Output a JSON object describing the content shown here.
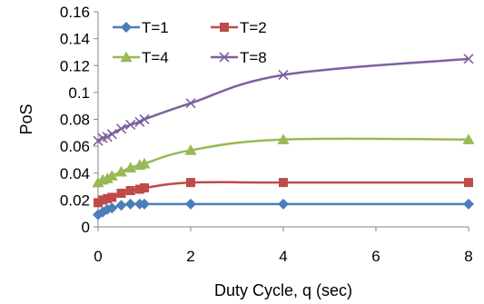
{
  "chart_data": {
    "type": "line",
    "xlabel": "Duty Cycle, q (sec)",
    "ylabel": "PoS",
    "xlim": [
      0,
      8
    ],
    "ylim": [
      0,
      0.16
    ],
    "xticks": [
      "0",
      "2",
      "4",
      "6",
      "8"
    ],
    "yticks": [
      "0",
      "0.02",
      "0.04",
      "0.06",
      "0.08",
      "0.1",
      "0.12",
      "0.14",
      "0.16"
    ],
    "grid": false,
    "legend_position": "top-left",
    "series": [
      {
        "name": "T=1",
        "color": "#4a7ebb",
        "marker": "diamond",
        "x": [
          0,
          0.1,
          0.2,
          0.3,
          0.5,
          0.7,
          0.9,
          1,
          2,
          4,
          8
        ],
        "y": [
          0.009,
          0.011,
          0.013,
          0.014,
          0.016,
          0.017,
          0.017,
          0.017,
          0.017,
          0.017,
          0.017
        ]
      },
      {
        "name": "T=2",
        "color": "#be4b48",
        "marker": "square",
        "x": [
          0,
          0.1,
          0.2,
          0.3,
          0.5,
          0.7,
          0.9,
          1,
          2,
          4,
          8
        ],
        "y": [
          0.018,
          0.02,
          0.021,
          0.022,
          0.025,
          0.027,
          0.028,
          0.029,
          0.033,
          0.033,
          0.033
        ]
      },
      {
        "name": "T=4",
        "color": "#98b954",
        "marker": "triangle",
        "x": [
          0,
          0.1,
          0.2,
          0.3,
          0.5,
          0.7,
          0.9,
          1,
          2,
          4,
          8
        ],
        "y": [
          0.033,
          0.035,
          0.036,
          0.038,
          0.041,
          0.044,
          0.046,
          0.047,
          0.057,
          0.065,
          0.065
        ]
      },
      {
        "name": "T=8",
        "color": "#7d60a0",
        "marker": "x",
        "x": [
          0,
          0.1,
          0.2,
          0.3,
          0.5,
          0.7,
          0.9,
          1,
          2,
          4,
          8
        ],
        "y": [
          0.064,
          0.066,
          0.067,
          0.069,
          0.073,
          0.076,
          0.078,
          0.08,
          0.092,
          0.113,
          0.125
        ]
      }
    ]
  }
}
